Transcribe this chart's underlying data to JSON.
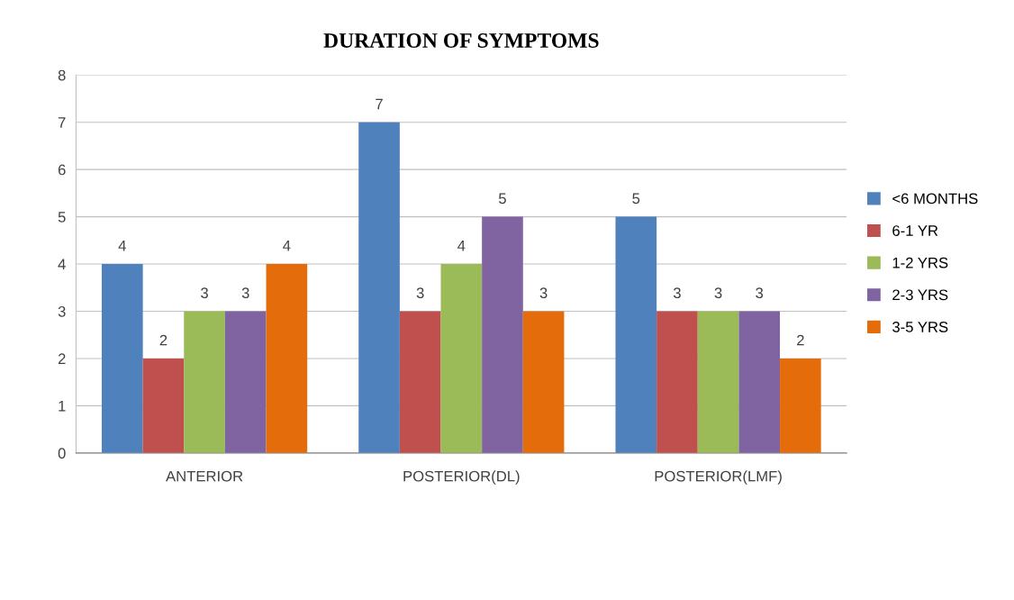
{
  "chart_data": {
    "type": "bar",
    "title": "DURATION OF SYMPTOMS",
    "categories": [
      "ANTERIOR",
      "POSTERIOR(DL)",
      "POSTERIOR(LMF)"
    ],
    "series": [
      {
        "name": "<6 MONTHS",
        "color": "#4f81bd",
        "values": [
          4,
          7,
          5
        ]
      },
      {
        "name": "6-1 YR",
        "color": "#c0504d",
        "values": [
          2,
          3,
          3
        ]
      },
      {
        "name": "1-2 YRS",
        "color": "#9bbb59",
        "values": [
          3,
          4,
          3
        ]
      },
      {
        "name": "2-3 YRS",
        "color": "#8064a2",
        "values": [
          3,
          5,
          3
        ]
      },
      {
        "name": "3-5 YRS",
        "color": "#e46c0a",
        "values": [
          4,
          3,
          2
        ]
      }
    ],
    "ylim": [
      0,
      8
    ],
    "yticks": [
      0,
      1,
      2,
      3,
      4,
      5,
      6,
      7,
      8
    ],
    "grid": "y",
    "legend": "right",
    "data_labels": true
  }
}
